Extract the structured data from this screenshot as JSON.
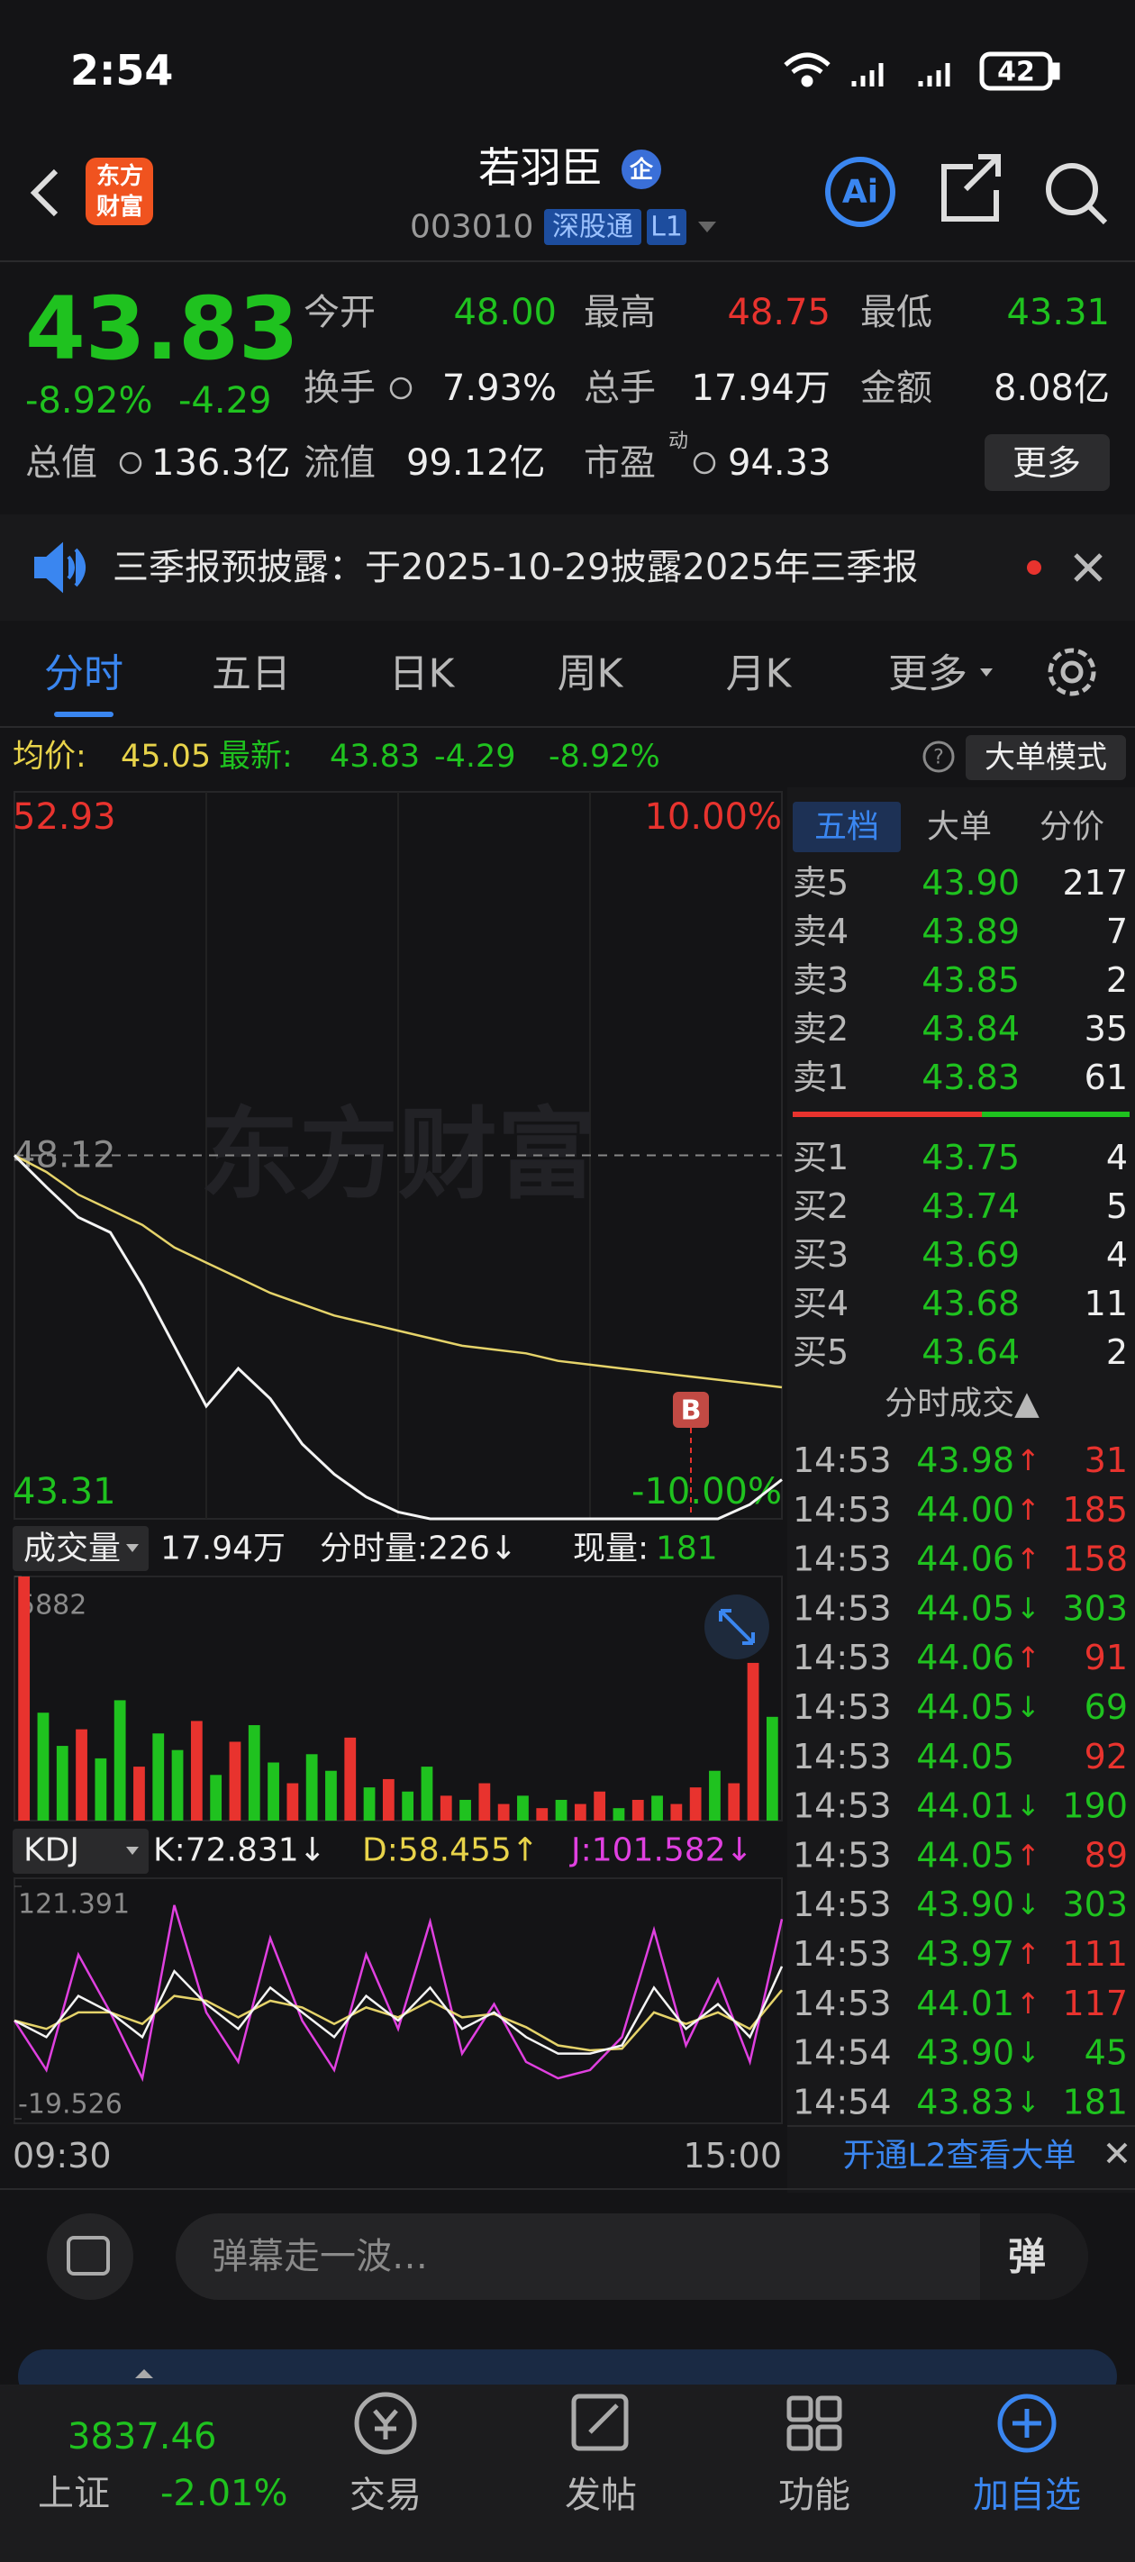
{
  "status_bar": {
    "time": "2:54",
    "battery": "42"
  },
  "header": {
    "logo": [
      "东方",
      "财富"
    ],
    "title": "若羽臣",
    "badge": "企",
    "code": "003010",
    "tags": [
      "深股通",
      "L1"
    ]
  },
  "quote": {
    "price": "43.83",
    "change_pct": "-8.92%",
    "change": "-4.29",
    "stats": [
      {
        "label": "今开",
        "value": "48.00",
        "color": "#1fc21f"
      },
      {
        "label": "最高",
        "value": "48.75",
        "color": "#e8332e"
      },
      {
        "label": "最低",
        "value": "43.31",
        "color": "#1fc21f"
      },
      {
        "label": "换手",
        "value": "7.93%"
      },
      {
        "label": "总手",
        "value": "17.94万"
      },
      {
        "label": "金额",
        "value": "8.08亿"
      },
      {
        "label": "总值",
        "value": "136.3亿"
      },
      {
        "label": "流值",
        "value": "99.12亿"
      },
      {
        "label": "市盈",
        "sup": "动",
        "value": "94.33"
      }
    ],
    "more": "更多"
  },
  "notice": "三季报预披露：于2025-10-29披露2025年三季报",
  "tabs": [
    "分时",
    "五日",
    "日K",
    "周K",
    "月K",
    "更多"
  ],
  "info": {
    "avg_label": "均价:",
    "avg": "45.05",
    "last_label": "最新:",
    "last": "43.83",
    "change": "-4.29",
    "pct": "-8.92%",
    "mode": "大单模式"
  },
  "price_chart": {
    "type": "line",
    "ylim": [
      43.31,
      52.93
    ],
    "yticks": [
      43.31,
      48.12,
      52.93
    ],
    "pct_labels": [
      "10.00%",
      "-10.00%"
    ],
    "watermark": "东方财富",
    "marker": "B",
    "price": [
      48.12,
      47.7,
      47.3,
      47.1,
      46.4,
      45.6,
      44.8,
      45.3,
      44.9,
      44.3,
      43.9,
      43.6,
      43.4,
      43.31,
      43.31,
      43.31,
      43.31,
      43.31,
      43.31,
      43.31,
      43.31,
      43.31,
      43.31,
      43.5,
      43.83
    ],
    "avg": [
      48.12,
      47.9,
      47.6,
      47.4,
      47.2,
      46.9,
      46.7,
      46.5,
      46.3,
      46.15,
      46.0,
      45.9,
      45.8,
      45.7,
      45.6,
      45.55,
      45.5,
      45.4,
      45.35,
      45.3,
      45.25,
      45.2,
      45.15,
      45.1,
      45.05
    ],
    "time_labels": [
      "09:30",
      "15:00"
    ]
  },
  "volume": {
    "type": "bar",
    "title": "成交量",
    "total": "17.94万",
    "minute": "分时量:226↓",
    "now_label": "现量:",
    "now": "181",
    "ylim": [
      0,
      5882
    ],
    "yticks": [
      5882
    ],
    "values": [
      5882,
      2600,
      1800,
      2200,
      1500,
      2900,
      1300,
      2100,
      1700,
      2400,
      1100,
      1900,
      2300,
      1400,
      900,
      1600,
      1200,
      2000,
      800,
      1000,
      700,
      1300,
      600,
      500,
      900,
      400,
      600,
      300,
      500,
      400,
      700,
      300,
      500,
      600,
      400,
      800,
      1200,
      900,
      3800,
      2500
    ],
    "rising": [
      true,
      false,
      false,
      true,
      false,
      false,
      true,
      false,
      false,
      true,
      false,
      true,
      false,
      false,
      true,
      false,
      false,
      true,
      false,
      true,
      false,
      false,
      true,
      false,
      true,
      true,
      false,
      true,
      false,
      true,
      true,
      false,
      true,
      false,
      true,
      true,
      false,
      true,
      true,
      false
    ]
  },
  "kdj": {
    "type": "line",
    "title": "KDJ",
    "k_label": "K:72.831↓",
    "d_label": "D:58.455↑",
    "j_label": "J:101.582↓",
    "ylim": [
      -19.526,
      121.391
    ],
    "yticks": [
      -19.526,
      121.391
    ],
    "k": [
      40,
      30,
      55,
      45,
      30,
      70,
      50,
      35,
      60,
      45,
      30,
      55,
      40,
      60,
      35,
      45,
      30,
      20,
      20,
      25,
      60,
      35,
      50,
      30,
      72.831
    ],
    "d": [
      40,
      35,
      45,
      45,
      38,
      55,
      52,
      42,
      52,
      48,
      38,
      48,
      42,
      52,
      42,
      44,
      36,
      25,
      22,
      23,
      45,
      38,
      45,
      35,
      58.455
    ],
    "j": [
      40,
      10,
      80,
      45,
      5,
      110,
      45,
      15,
      90,
      40,
      10,
      80,
      35,
      100,
      20,
      50,
      15,
      5,
      10,
      30,
      95,
      25,
      65,
      15,
      101.582
    ]
  },
  "order_book": {
    "tabs": [
      "五档",
      "大单",
      "分价"
    ],
    "asks": [
      {
        "label": "卖5",
        "price": "43.90",
        "vol": "217"
      },
      {
        "label": "卖4",
        "price": "43.89",
        "vol": "7"
      },
      {
        "label": "卖3",
        "price": "43.85",
        "vol": "2"
      },
      {
        "label": "卖2",
        "price": "43.84",
        "vol": "35"
      },
      {
        "label": "卖1",
        "price": "43.83",
        "vol": "61"
      }
    ],
    "bids": [
      {
        "label": "买1",
        "price": "43.75",
        "vol": "4"
      },
      {
        "label": "买2",
        "price": "43.74",
        "vol": "5"
      },
      {
        "label": "买3",
        "price": "43.69",
        "vol": "4"
      },
      {
        "label": "买4",
        "price": "43.68",
        "vol": "11"
      },
      {
        "label": "买5",
        "price": "43.64",
        "vol": "2"
      }
    ]
  },
  "trades": {
    "title": "分时成交▲",
    "rows": [
      {
        "time": "14:53",
        "price": "43.98",
        "dir": "↑",
        "vol": "31",
        "up": true
      },
      {
        "time": "14:53",
        "price": "44.00",
        "dir": "↑",
        "vol": "185",
        "up": true
      },
      {
        "time": "14:53",
        "price": "44.06",
        "dir": "↑",
        "vol": "158",
        "up": true
      },
      {
        "time": "14:53",
        "price": "44.05",
        "dir": "↓",
        "vol": "303",
        "up": false
      },
      {
        "time": "14:53",
        "price": "44.06",
        "dir": "↑",
        "vol": "91",
        "up": true
      },
      {
        "time": "14:53",
        "price": "44.05",
        "dir": "↓",
        "vol": "69",
        "up": false
      },
      {
        "time": "14:53",
        "price": "44.05",
        "vol": "92",
        "up": true
      },
      {
        "time": "14:53",
        "price": "44.01",
        "dir": "↓",
        "vol": "190",
        "up": false
      },
      {
        "time": "14:53",
        "price": "44.05",
        "dir": "↑",
        "vol": "89",
        "up": true
      },
      {
        "time": "14:53",
        "price": "43.90",
        "dir": "↓",
        "vol": "303",
        "up": false
      },
      {
        "time": "14:53",
        "price": "43.97",
        "dir": "↑",
        "vol": "111",
        "up": true
      },
      {
        "time": "14:53",
        "price": "44.01",
        "dir": "↑",
        "vol": "117",
        "up": true
      },
      {
        "time": "14:54",
        "price": "43.90",
        "dir": "↓",
        "vol": "45",
        "up": false
      },
      {
        "time": "14:54",
        "price": "43.83",
        "dir": "↓",
        "vol": "181",
        "up": false
      }
    ],
    "l2": "开通L2查看大单"
  },
  "comment": {
    "placeholder": "弹幕走一波…",
    "button": "弹"
  },
  "index": {
    "value": "3837.46",
    "name": "上证",
    "pct": "-2.01%"
  },
  "nav": [
    "交易",
    "发帖",
    "功能",
    "加自选"
  ]
}
